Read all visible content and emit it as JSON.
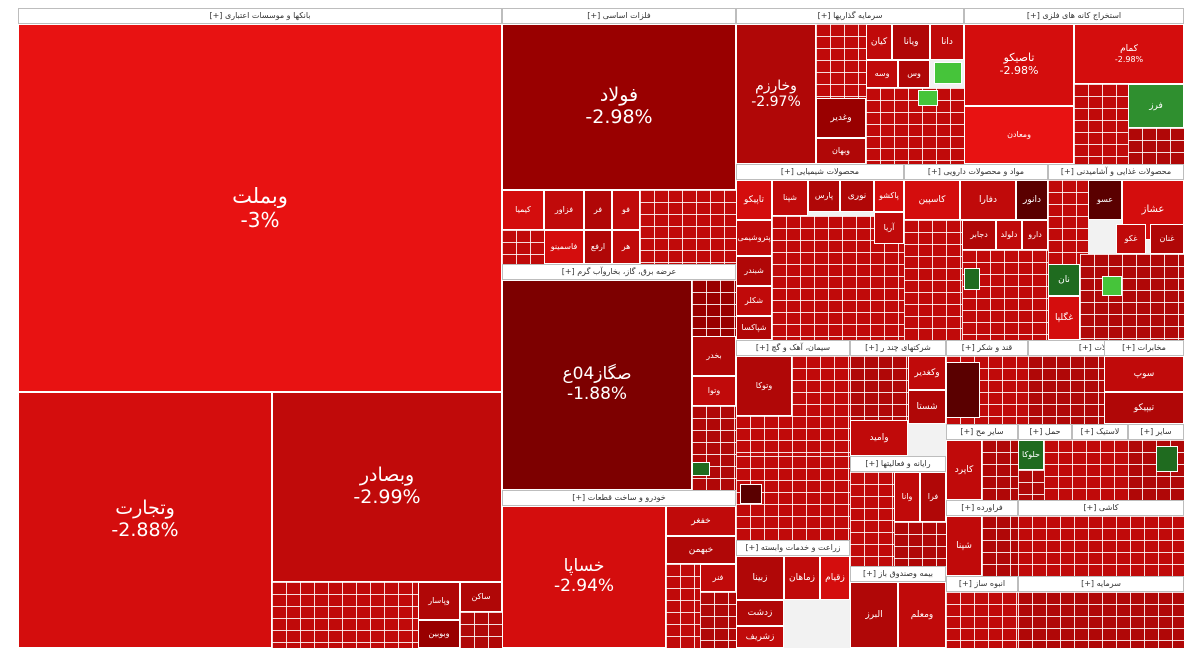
{
  "chart_data": {
    "type": "treemap",
    "sectors": [
      {
        "label": "بانکها و موسسات اعتباری [+]",
        "stocks": [
          {
            "name": "وبملت",
            "change": "-3%"
          },
          {
            "name": "وتجارت",
            "change": "-2.88%"
          },
          {
            "name": "وبصادر",
            "change": "-2.99%"
          },
          {
            "name": "وپاسار"
          },
          {
            "name": "ساکن"
          },
          {
            "name": "وبوبین"
          }
        ]
      },
      {
        "label": "فلزات اساسی [+]",
        "stocks": [
          {
            "name": "فولاد",
            "change": "-2.98%"
          },
          {
            "name": "کیمیا"
          },
          {
            "name": "فزاور"
          },
          {
            "name": "فر"
          },
          {
            "name": "فو"
          },
          {
            "name": "فاسمینو"
          },
          {
            "name": "ارفع"
          },
          {
            "name": "هر"
          },
          {
            "name": "فو"
          }
        ]
      },
      {
        "label": "سرمایه گذاریها [+]",
        "stocks": [
          {
            "name": "وخارزم",
            "change": "-2.97%"
          },
          {
            "name": "کیان"
          },
          {
            "name": "ویانا"
          },
          {
            "name": "دانا"
          },
          {
            "name": "وسه"
          },
          {
            "name": "وس"
          },
          {
            "name": "وغدیر"
          },
          {
            "name": "وبهان"
          }
        ]
      },
      {
        "label": "استخراج کانه های فلزی [+]",
        "stocks": [
          {
            "name": "تاصیکو",
            "change": "-2.98%"
          },
          {
            "name": "کمام",
            "change": "-2.98%"
          },
          {
            "name": "فرز"
          },
          {
            "name": "ومعادن"
          }
        ]
      },
      {
        "label": "عرضه برق، گاز، بخاروآب گرم [+]",
        "stocks": [
          {
            "name": "ص​گ​ا​ز04ع",
            "change": "-1.88%"
          },
          {
            "name": "بخدر"
          },
          {
            "name": "وتوا"
          }
        ]
      },
      {
        "label": "خودرو و ساخت قطعات [+]",
        "stocks": [
          {
            "name": "خساپا",
            "change": "-2.94%"
          },
          {
            "name": "خفغر"
          },
          {
            "name": "خبهمن"
          },
          {
            "name": "فنر"
          }
        ]
      },
      {
        "label": "محصولات شیمیایی [+]",
        "stocks": [
          {
            "name": "تاپیکو"
          },
          {
            "name": "پتروشیمی"
          },
          {
            "name": "نوری"
          },
          {
            "name": "شپنا"
          },
          {
            "name": "شبندر"
          },
          {
            "name": "شکلر"
          },
          {
            "name": "آریا"
          },
          {
            "name": "پارس"
          },
          {
            "name": "پاکشو"
          },
          {
            "name": "شپاکسا"
          }
        ]
      },
      {
        "label": "مواد و محصولات دارویی [+]",
        "stocks": [
          {
            "name": "دانور"
          },
          {
            "name": "دفارا"
          },
          {
            "name": "کاسپین"
          },
          {
            "name": "دجابر"
          },
          {
            "name": "دلولد"
          },
          {
            "name": "دارو"
          }
        ]
      },
      {
        "label": "محصولات غذایی و آشامیدنی [+]",
        "stocks": [
          {
            "name": "عشاز"
          },
          {
            "name": "عسو"
          },
          {
            "name": "غکو"
          },
          {
            "name": "غنان"
          },
          {
            "name": "نان"
          },
          {
            "name": "غگلپا"
          }
        ]
      },
      {
        "label": "سیمان، آهک و گچ [+]",
        "stocks": [
          {
            "name": "وتوکا"
          }
        ]
      },
      {
        "label": "شرکتهای چند ر [+]",
        "stocks": [
          {
            "name": "وکغدیر"
          },
          {
            "name": "شستا"
          },
          {
            "name": "وامید"
          }
        ]
      },
      {
        "label": "قند و شکر [+]",
        "stocks": []
      },
      {
        "label": "ماشین آلات [+]",
        "stocks": [
          {
            "name": "سوپ"
          },
          {
            "name": "تیپیکو"
          }
        ]
      },
      {
        "label": "رایانه و فعالیتها [+]",
        "stocks": [
          {
            "name": "فرا"
          },
          {
            "name": "وانا"
          }
        ]
      },
      {
        "label": "مخابرات [+]",
        "stocks": [
          {
            "name": "همراه"
          }
        ]
      },
      {
        "label": "زراعت و خدمات وابسته [+]",
        "stocks": [
          {
            "name": "زماهان"
          },
          {
            "name": "زبینا"
          },
          {
            "name": "زدشت"
          },
          {
            "name": "زشریف"
          },
          {
            "name": "زقیام"
          }
        ]
      },
      {
        "label": "بیمه وصندوق باز [+]",
        "stocks": [
          {
            "name": "البرز"
          },
          {
            "name": "ومعلم"
          }
        ]
      },
      {
        "label": "سایر مح [+]",
        "stocks": [
          {
            "name": "کاپرد"
          }
        ]
      },
      {
        "label": "فراورده [+]",
        "stocks": [
          {
            "name": "شپنا"
          }
        ]
      },
      {
        "label": "انبوه ساز [+]",
        "stocks": []
      },
      {
        "label": "حمل [+]",
        "stocks": [
          {
            "name": "حلوکا"
          }
        ]
      },
      {
        "label": "لاستیک [+]",
        "stocks": []
      },
      {
        "label": "سایر [+]",
        "stocks": []
      },
      {
        "label": "کاشی [+]",
        "stocks": []
      },
      {
        "label": "سرمایه [+]",
        "stocks": []
      }
    ],
    "legend": "none",
    "grid": false
  }
}
